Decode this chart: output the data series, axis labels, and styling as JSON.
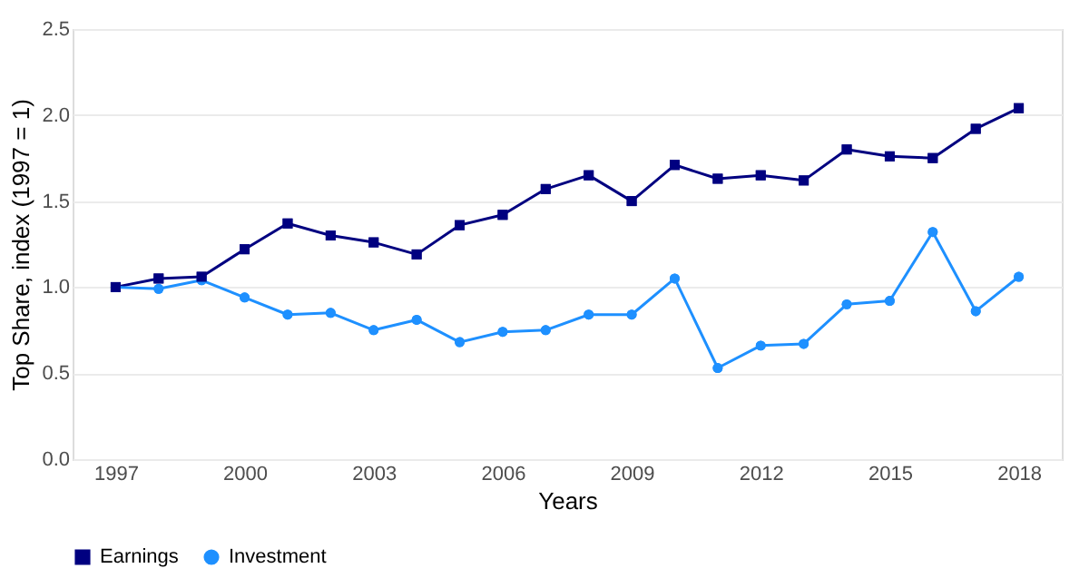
{
  "chart_data": {
    "type": "line",
    "xlabel": "Years",
    "ylabel": "Top Share, index (1997 = 1)",
    "x": [
      1997,
      1998,
      1999,
      2000,
      2001,
      2002,
      2003,
      2004,
      2005,
      2006,
      2007,
      2008,
      2009,
      2010,
      2011,
      2012,
      2013,
      2014,
      2015,
      2016,
      2017,
      2018
    ],
    "series": [
      {
        "name": "Earnings",
        "color": "#000080",
        "marker": "square",
        "values": [
          1.0,
          1.05,
          1.06,
          1.22,
          1.37,
          1.3,
          1.26,
          1.19,
          1.36,
          1.42,
          1.57,
          1.65,
          1.5,
          1.71,
          1.63,
          1.65,
          1.62,
          1.8,
          1.76,
          1.75,
          1.92,
          2.04
        ]
      },
      {
        "name": "Investment",
        "color": "#1e90ff",
        "marker": "circle",
        "values": [
          1.0,
          0.99,
          1.04,
          0.94,
          0.84,
          0.85,
          0.75,
          0.81,
          0.68,
          0.74,
          0.75,
          0.84,
          0.84,
          1.05,
          0.53,
          0.66,
          0.67,
          0.9,
          0.92,
          1.32,
          0.86,
          1.06
        ]
      }
    ],
    "xlim": [
      1996,
      2019
    ],
    "xticks": [
      1997,
      2000,
      2003,
      2006,
      2009,
      2012,
      2015,
      2018
    ],
    "ylim": [
      0,
      2.5
    ],
    "yticks": [
      {
        "value": 0,
        "label": "0.0"
      },
      0.5,
      {
        "value": 1,
        "label": "1.0"
      },
      1.5,
      {
        "value": 2,
        "label": "2.0"
      },
      2.5
    ],
    "grid": "y",
    "legend": "bottom",
    "line_style": "solid"
  }
}
